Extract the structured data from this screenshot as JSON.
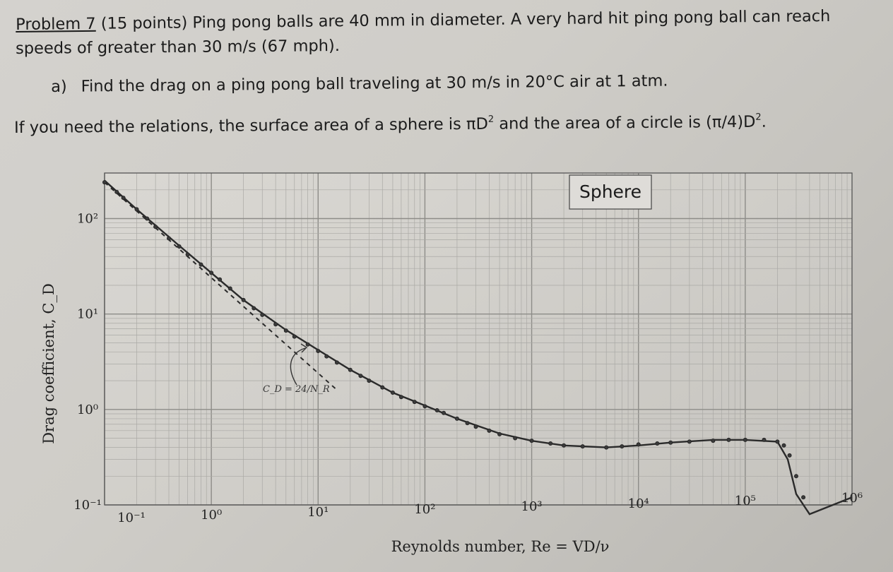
{
  "problem": {
    "label": "Problem 7",
    "text_line1": " (15 points) Ping pong balls are 40 mm in diameter.  A very hard hit ping pong ball can reach",
    "text_line2": "speeds of greater than 30 m/s (67 mph).",
    "part_a_label": "a)",
    "part_a_text": "Find the drag on a ping pong ball traveling at 30 m/s in 20°C air at 1 atm.",
    "relations_part1": "If you need the relations, the surface area of a sphere is πD",
    "relations_part2": " and the area of a circle is (π/4)D",
    "relations_end": ".",
    "sup2": "2"
  },
  "chart_data": {
    "type": "scatter",
    "title": "Sphere",
    "xlabel": "Reynolds number, Re = VD/ν",
    "ylabel": "Drag coefficient, C_D",
    "x_scale": "log",
    "y_scale": "log",
    "xlim": [
      0.1,
      1000000
    ],
    "ylim": [
      0.1,
      300
    ],
    "grid": true,
    "x_ticks": [
      "10⁻¹",
      "10⁰",
      "10¹",
      "10²",
      "10³",
      "10⁴",
      "10⁵",
      "10⁶"
    ],
    "y_ticks": [
      "10⁻¹",
      "10⁰",
      "10¹",
      "10²"
    ],
    "annotation": "C_D = 24/N_R",
    "series": [
      {
        "kind": "curve",
        "x": [
          0.1,
          0.2,
          0.5,
          1,
          2,
          5,
          10,
          20,
          50,
          100,
          200,
          500,
          1000,
          2000,
          5000,
          10000,
          20000,
          50000,
          100000,
          200000,
          250000,
          300000,
          400000,
          1000000
        ],
        "y": [
          250,
          125,
          52,
          27,
          14,
          6.8,
          4.2,
          2.6,
          1.5,
          1.1,
          0.8,
          0.56,
          0.47,
          0.42,
          0.4,
          0.42,
          0.45,
          0.48,
          0.48,
          0.46,
          0.3,
          0.13,
          0.08,
          0.12
        ]
      },
      {
        "kind": "dashed",
        "x": [
          0.1,
          15
        ],
        "y": [
          240,
          1.6
        ]
      },
      {
        "kind": "points",
        "x": [
          0.1,
          0.13,
          0.15,
          0.2,
          0.25,
          0.3,
          0.4,
          0.5,
          0.6,
          0.8,
          1,
          1.2,
          1.5,
          2,
          2.5,
          3,
          4,
          5,
          6,
          8,
          10,
          12,
          15,
          20,
          25,
          30,
          40,
          50,
          60,
          80,
          100,
          130,
          150,
          200,
          250,
          300,
          400,
          500,
          700,
          1000,
          1500,
          2000,
          3000,
          5000,
          7000,
          10000,
          15000,
          20000,
          30000,
          50000,
          70000,
          100000,
          150000,
          200000,
          230000,
          260000,
          300000,
          350000
        ],
        "y": [
          240,
          190,
          165,
          125,
          100,
          82,
          62,
          51,
          42,
          33,
          27,
          23,
          18.5,
          14,
          11.5,
          9.8,
          7.8,
          6.7,
          5.8,
          4.8,
          4.1,
          3.6,
          3.1,
          2.6,
          2.25,
          2.0,
          1.7,
          1.5,
          1.35,
          1.2,
          1.08,
          0.98,
          0.92,
          0.8,
          0.72,
          0.66,
          0.6,
          0.55,
          0.5,
          0.47,
          0.44,
          0.42,
          0.41,
          0.4,
          0.41,
          0.43,
          0.44,
          0.45,
          0.46,
          0.47,
          0.48,
          0.48,
          0.48,
          0.46,
          0.42,
          0.33,
          0.2,
          0.12
        ]
      }
    ]
  }
}
